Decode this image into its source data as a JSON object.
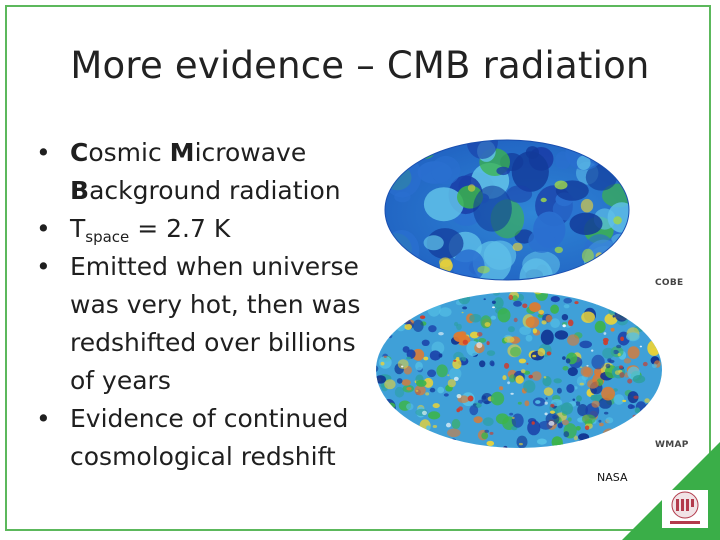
{
  "slide": {
    "title": "More evidence – CMB radiation",
    "bullets": [
      {
        "parts": [
          {
            "text": "C",
            "b": true
          },
          {
            "text": "osmic "
          },
          {
            "text": "M",
            "b": true
          },
          {
            "text": "icrowave "
          },
          {
            "text": "B",
            "b": true
          },
          {
            "text": "ackground radiation"
          }
        ]
      },
      {
        "parts": [
          {
            "text": "T"
          },
          {
            "text": "space",
            "sub": true
          },
          {
            "text": " = 2.7 K"
          }
        ]
      },
      {
        "parts": [
          {
            "text": "Emitted when universe was very hot, then was redshifted over billions of years"
          }
        ]
      },
      {
        "parts": [
          {
            "text": "Evidence of continued cosmological redshift"
          }
        ]
      }
    ],
    "images": {
      "cobe_label": "COBE",
      "wmap_label": "WMAP",
      "credit": "NASA"
    },
    "logo_text": "MIT",
    "colors": {
      "frame": "#5cb85c",
      "corner": "#3aae48",
      "cmb_blue": "#1a3fa8",
      "cmb_green": "#3cb44a",
      "cmb_yellow": "#e8d23a"
    }
  }
}
